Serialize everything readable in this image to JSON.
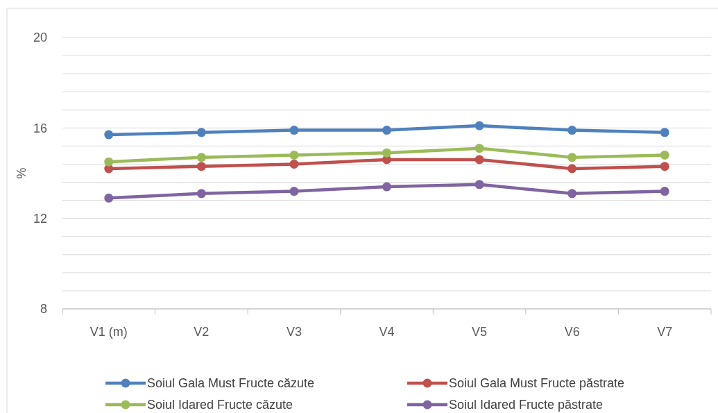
{
  "chart_data": {
    "type": "line",
    "ylabel": "%",
    "categories": [
      "V1 (m)",
      "V2",
      "V3",
      "V4",
      "V5",
      "V6",
      "V7"
    ],
    "ylim": [
      8,
      20
    ],
    "yticks": [
      8,
      {
        "value": 8.8,
        "label": null
      },
      {
        "value": 9.6,
        "label": null
      },
      {
        "value": 10.4,
        "label": null
      },
      {
        "value": 11.2,
        "label": null
      },
      12,
      {
        "value": 12.8,
        "label": null
      },
      {
        "value": 13.6,
        "label": null
      },
      {
        "value": 14.4,
        "label": null
      },
      {
        "value": 15.2,
        "label": null
      },
      16,
      {
        "value": 16.8,
        "label": null
      },
      {
        "value": 17.6,
        "label": null
      },
      {
        "value": 18.4,
        "label": null
      },
      {
        "value": 19.2,
        "label": null
      },
      20
    ],
    "grid": "y",
    "legend": "bottom",
    "marker": "circle",
    "line_style": "solid",
    "series": [
      {
        "name": "Soiul Gala Must Fructe căzute",
        "color": "#4f81bd",
        "values": [
          15.7,
          15.8,
          15.9,
          15.9,
          16.1,
          15.9,
          15.8
        ]
      },
      {
        "name": "Soiul Gala Must Fructe păstrate",
        "color": "#c0504d",
        "values": [
          14.2,
          14.3,
          14.4,
          14.6,
          14.6,
          14.2,
          14.3
        ]
      },
      {
        "name": "Soiul Idared Fructe căzute",
        "color": "#9bbb59",
        "values": [
          14.5,
          14.7,
          14.8,
          14.9,
          15.1,
          14.7,
          14.8
        ]
      },
      {
        "name": "Soiul Idared Fructe păstrate",
        "color": "#8064a2",
        "values": [
          12.9,
          13.1,
          13.2,
          13.4,
          13.5,
          13.1,
          13.2
        ]
      }
    ]
  }
}
